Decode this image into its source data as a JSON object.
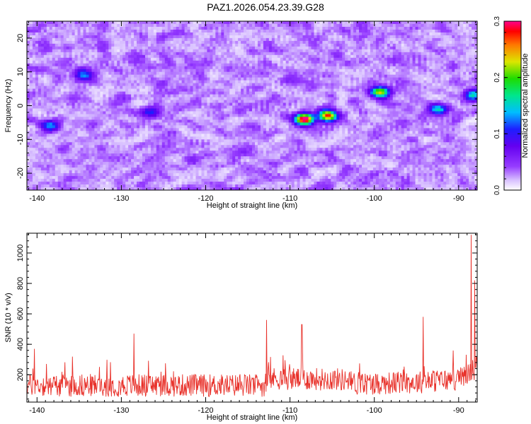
{
  "title": "PAZ1.2026.054.23.39.G28",
  "chart_data": [
    {
      "type": "heatmap",
      "title": "PAZ1.2026.054.23.39.G28",
      "xlabel": "Height of straight line (km)",
      "ylabel": "Frequency (Hz)",
      "xlim": [
        -141.2,
        -87.8
      ],
      "ylim": [
        -25,
        25
      ],
      "xticks": [
        -140,
        -130,
        -120,
        -110,
        -100,
        -90
      ],
      "yticks": [
        -20,
        -10,
        0,
        10,
        20
      ],
      "xtick_labels": [
        "-140",
        "-130",
        "-120",
        "-110",
        "-100",
        "-90"
      ],
      "ytick_labels": [
        "-20",
        "-10",
        "0",
        "10",
        "20"
      ],
      "colorbar": {
        "label": "Normalized spectral amplitude",
        "range": [
          0.0,
          0.3
        ],
        "ticks": [
          0.0,
          0.1,
          0.2,
          0.3
        ],
        "tick_labels": [
          "0.0",
          "0.1",
          "0.2",
          "0.3"
        ]
      },
      "hotspots": [
        {
          "x": -108.3,
          "y": -4,
          "value": 0.3
        },
        {
          "x": -105.5,
          "y": -3,
          "value": 0.25
        },
        {
          "x": -99.3,
          "y": 4,
          "value": 0.22
        },
        {
          "x": -92.5,
          "y": -1,
          "value": 0.13
        },
        {
          "x": -88.3,
          "y": 3,
          "value": 0.14
        },
        {
          "x": -134.3,
          "y": 9,
          "value": 0.1
        },
        {
          "x": -138.3,
          "y": -6,
          "value": 0.1
        },
        {
          "x": -126.5,
          "y": -2,
          "value": 0.09
        }
      ]
    },
    {
      "type": "line",
      "xlabel": "Height of straight line (km)",
      "ylabel": "SNR (10 * v/v)",
      "xlim": [
        -141.2,
        -87.8
      ],
      "ylim": [
        20,
        1130
      ],
      "xticks": [
        -140,
        -130,
        -120,
        -110,
        -100,
        -90
      ],
      "yticks": [
        200,
        400,
        600,
        800,
        1000
      ],
      "xtick_labels": [
        "-140",
        "-130",
        "-120",
        "-110",
        "-100",
        "-90"
      ],
      "ytick_labels": [
        "200",
        "400",
        "600",
        "800",
        "1000"
      ],
      "series": [
        {
          "name": "SNR",
          "color": "#e8312a",
          "baseline": [
            {
              "x": -141.2,
              "y": 130
            },
            {
              "x": -112.8,
              "y": 130
            },
            {
              "x": -112.5,
              "y": 175
            },
            {
              "x": -104,
              "y": 170
            },
            {
              "x": -102,
              "y": 140
            },
            {
              "x": -95,
              "y": 150
            },
            {
              "x": -90,
              "y": 170
            },
            {
              "x": -88.5,
              "y": 220
            },
            {
              "x": -87.8,
              "y": 260
            }
          ],
          "peaks": [
            {
              "x": -140.3,
              "y": 370
            },
            {
              "x": -128.5,
              "y": 470
            },
            {
              "x": -112.8,
              "y": 560
            },
            {
              "x": -108.6,
              "y": 530
            },
            {
              "x": -94.2,
              "y": 580
            },
            {
              "x": -88.5,
              "y": 1120
            },
            {
              "x": -88.1,
              "y": 820
            }
          ]
        }
      ]
    }
  ]
}
